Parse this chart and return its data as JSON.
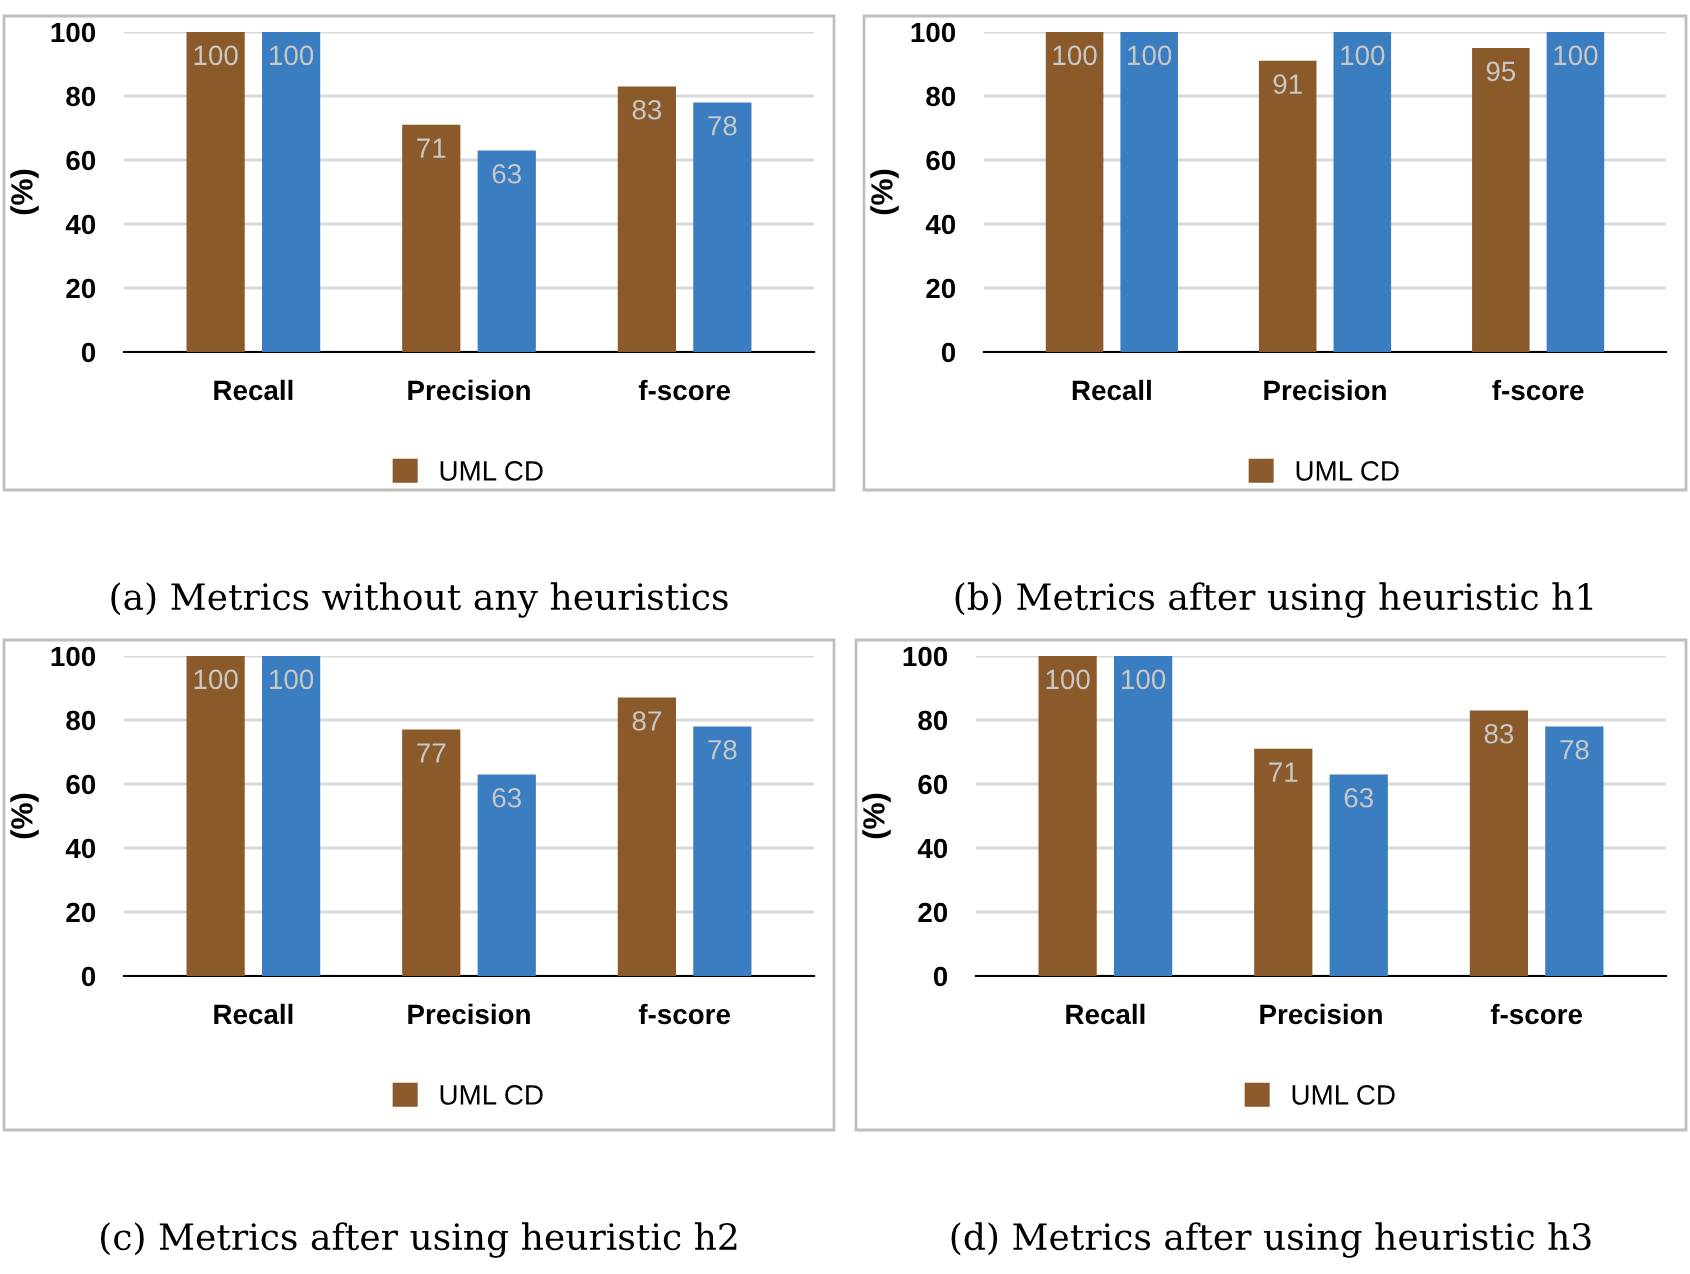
{
  "chart_data": [
    {
      "type": "bar",
      "categories": [
        "Recall",
        "Precision",
        "f-score"
      ],
      "ylabel": "(%)",
      "ylim": [
        0,
        100
      ],
      "yticks": [
        0,
        20,
        40,
        60,
        80,
        100
      ],
      "grid": "y",
      "legend": "bottom",
      "data_labels": true,
      "series": [
        {
          "name": "UML CD",
          "color": "#8b5a2b",
          "values": [
            100,
            71,
            83
          ]
        },
        {
          "color": "#3a7dc0",
          "values": [
            100,
            63,
            78
          ]
        }
      ],
      "annotations": [
        "(a) Metrics without any heuristics"
      ]
    },
    {
      "type": "bar",
      "categories": [
        "Recall",
        "Precision",
        "f-score"
      ],
      "ylabel": "(%)",
      "ylim": [
        0,
        100
      ],
      "yticks": [
        0,
        20,
        40,
        60,
        80,
        100
      ],
      "grid": "y",
      "legend": "bottom",
      "data_labels": true,
      "series": [
        {
          "name": "UML CD",
          "color": "#8b5a2b",
          "values": [
            100,
            91,
            95
          ]
        },
        {
          "color": "#3a7dc0",
          "values": [
            100,
            100,
            100
          ]
        }
      ],
      "annotations": [
        "(b) Metrics after using heuristic h1"
      ]
    },
    {
      "type": "bar",
      "categories": [
        "Recall",
        "Precision",
        "f-score"
      ],
      "ylabel": "(%)",
      "ylim": [
        0,
        100
      ],
      "yticks": [
        0,
        20,
        40,
        60,
        80,
        100
      ],
      "grid": "y",
      "legend": "bottom",
      "data_labels": true,
      "series": [
        {
          "name": "UML CD",
          "color": "#8b5a2b",
          "values": [
            100,
            77,
            87
          ]
        },
        {
          "color": "#3a7dc0",
          "values": [
            100,
            63,
            78
          ]
        }
      ],
      "annotations": [
        "(c) Metrics after using heuristic h2"
      ]
    },
    {
      "type": "bar",
      "categories": [
        "Recall",
        "Precision",
        "f-score"
      ],
      "ylabel": "(%)",
      "ylim": [
        0,
        100
      ],
      "yticks": [
        0,
        20,
        40,
        60,
        80,
        100
      ],
      "grid": "y",
      "legend": "bottom",
      "data_labels": true,
      "series": [
        {
          "name": "UML CD",
          "color": "#8b5a2b",
          "values": [
            100,
            71,
            83
          ]
        },
        {
          "color": "#3a7dc0",
          "values": [
            100,
            63,
            78
          ]
        }
      ],
      "annotations": [
        "(d) Metrics after using heuristic h3"
      ]
    }
  ]
}
